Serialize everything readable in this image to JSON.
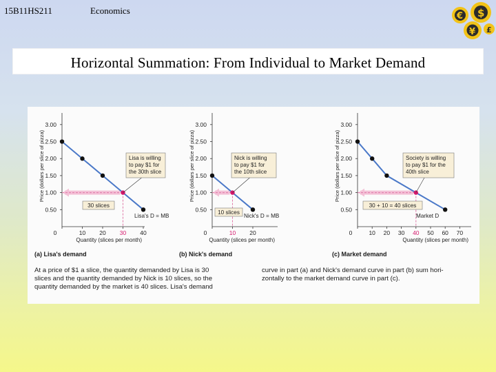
{
  "header": {
    "course_code": "15B11HS211",
    "subject": "Economics"
  },
  "title": "Horizontal Summation: From Individual to Market Demand",
  "colors": {
    "demand_line": "#4a78c8",
    "point": "#111111",
    "highlight_point": "#d4186c",
    "dashed": "#e07aa8",
    "arrow": "#f3c0d6",
    "callout_bg": "#f8efd8"
  },
  "chart_data": [
    {
      "type": "line",
      "ylabel": "Price (dollars per slice of pizza)",
      "xlabel": "Quantity (slices per month)",
      "y_ticks": [
        "3.00",
        "2.50",
        "2.00",
        "1.50",
        "1.00",
        "0.50"
      ],
      "x_ticks": [
        "0",
        "10",
        "20",
        "30",
        "40"
      ],
      "highlight_tick": "30",
      "ylim": [
        0,
        3.3
      ],
      "xlim": [
        0,
        45
      ],
      "points": [
        [
          0,
          2.5
        ],
        [
          10,
          2.0
        ],
        [
          20,
          1.5
        ],
        [
          30,
          1.0
        ],
        [
          40,
          0.5
        ]
      ],
      "highlight": [
        30,
        1.0
      ],
      "callout": [
        "Lisa is willing",
        "to pay $1 for",
        "the 30th slice"
      ],
      "qty_label": "30 slices",
      "line_label": "Lisa's D = MB",
      "caption": "(a) Lisa's demand"
    },
    {
      "type": "line",
      "ylabel": "Price (dollars per slice of pizza)",
      "xlabel": "Quantity (slices per month)",
      "y_ticks": [
        "3.00",
        "2.50",
        "2.00",
        "1.50",
        "1.00",
        "0.50"
      ],
      "x_ticks": [
        "0",
        "10",
        "20"
      ],
      "highlight_tick": "10",
      "ylim": [
        0,
        3.3
      ],
      "xlim": [
        0,
        25
      ],
      "points": [
        [
          0,
          1.5
        ],
        [
          10,
          1.0
        ],
        [
          20,
          0.5
        ]
      ],
      "highlight": [
        10,
        1.0
      ],
      "callout": [
        "Nick is willing",
        "to pay $1 for",
        "the 10th slice"
      ],
      "qty_label": "10 slices",
      "line_label": "Nick's D = MB",
      "caption": "(b) Nick's demand"
    },
    {
      "type": "line",
      "ylabel": "Price (dollars per slice of pizza)",
      "xlabel": "Quantity (slices per month)",
      "y_ticks": [
        "3.00",
        "2.50",
        "2.00",
        "1.50",
        "1.00",
        "0.50"
      ],
      "x_ticks": [
        "0",
        "10",
        "20",
        "30",
        "40",
        "50",
        "60",
        "70"
      ],
      "highlight_tick": "40",
      "ylim": [
        0,
        3.3
      ],
      "xlim": [
        0,
        75
      ],
      "points": [
        [
          0,
          2.5
        ],
        [
          10,
          2.0
        ],
        [
          20,
          1.5
        ],
        [
          40,
          1.0
        ],
        [
          60,
          0.5
        ]
      ],
      "highlight": [
        40,
        1.0
      ],
      "callout": [
        "Society is willing",
        "to pay $1 for the",
        "40th slice"
      ],
      "qty_label": "30 + 10 = 40 slices",
      "line_label": "Market D",
      "caption": "(c) Market demand"
    }
  ],
  "explanation": {
    "left": [
      "At a price of $1 a slice, the quantity demanded by Lisa is 30",
      "slices and the quantity demanded by Nick is 10 slices, so the",
      "quantity demanded by the market is 40 slices. Lisa's demand"
    ],
    "right": [
      "curve in part (a) and Nick's demand curve in part (b) sum hori-",
      "zontally to the market demand curve in part (c)."
    ]
  }
}
